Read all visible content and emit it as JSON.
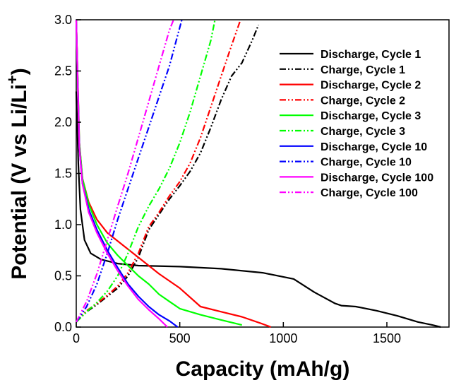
{
  "chart_data": {
    "type": "line",
    "title": "",
    "xlabel": "Capacity (mAh/g)",
    "ylabel_main": "Potential (V vs Li/Li",
    "ylabel_sup": "+",
    "ylabel_close": ")",
    "xlim": [
      0,
      1800
    ],
    "ylim": [
      0,
      3.0
    ],
    "xticks": [
      0,
      500,
      1000,
      1500
    ],
    "yticks": [
      0.0,
      0.5,
      1.0,
      1.5,
      2.0,
      2.5,
      3.0
    ],
    "xtick_labels": [
      "0",
      "500",
      "1000",
      "1500"
    ],
    "ytick_labels": [
      "0.0",
      "0.5",
      "1.0",
      "1.5",
      "2.0",
      "2.5",
      "3.0"
    ],
    "grid": false,
    "legend_position": "top-right",
    "series": [
      {
        "name": "Discharge, Cycle 1",
        "color": "#000000",
        "dash": "solid",
        "x": [
          0,
          10,
          20,
          40,
          70,
          120,
          200,
          300,
          500,
          700,
          900,
          1050,
          1150,
          1250,
          1280,
          1350,
          1450,
          1550,
          1650,
          1720,
          1760
        ],
        "y": [
          2.3,
          1.6,
          1.15,
          0.85,
          0.72,
          0.66,
          0.62,
          0.6,
          0.59,
          0.57,
          0.53,
          0.47,
          0.34,
          0.23,
          0.21,
          0.2,
          0.16,
          0.11,
          0.05,
          0.02,
          0.0
        ]
      },
      {
        "name": "Charge, Cycle 1",
        "color": "#000000",
        "dash": "dashdotdot",
        "x": [
          0,
          50,
          100,
          150,
          200,
          250,
          300,
          350,
          400,
          450,
          500,
          550,
          600,
          650,
          700,
          750,
          800,
          850,
          880
        ],
        "y": [
          0.05,
          0.15,
          0.22,
          0.3,
          0.38,
          0.5,
          0.68,
          0.95,
          1.1,
          1.25,
          1.38,
          1.52,
          1.7,
          1.95,
          2.22,
          2.45,
          2.58,
          2.8,
          2.95
        ]
      },
      {
        "name": "Discharge, Cycle 2",
        "color": "#ff0000",
        "dash": "solid",
        "x": [
          0,
          15,
          30,
          60,
          100,
          150,
          200,
          300,
          400,
          500,
          600,
          700,
          800,
          900,
          940
        ],
        "y": [
          3.0,
          1.8,
          1.45,
          1.22,
          1.05,
          0.92,
          0.84,
          0.68,
          0.52,
          0.38,
          0.2,
          0.15,
          0.1,
          0.03,
          0.0
        ]
      },
      {
        "name": "Charge, Cycle 2",
        "color": "#ff0000",
        "dash": "dashdotdot",
        "x": [
          0,
          50,
          100,
          150,
          200,
          250,
          300,
          350,
          400,
          450,
          500,
          550,
          600,
          650,
          700,
          750,
          790
        ],
        "y": [
          0.05,
          0.16,
          0.23,
          0.31,
          0.4,
          0.53,
          0.72,
          0.98,
          1.12,
          1.28,
          1.42,
          1.6,
          1.85,
          2.15,
          2.45,
          2.75,
          2.98
        ]
      },
      {
        "name": "Discharge, Cycle 3",
        "color": "#00ff00",
        "dash": "solid",
        "x": [
          0,
          15,
          30,
          60,
          100,
          150,
          200,
          250,
          300,
          350,
          400,
          450,
          500,
          600,
          700,
          800
        ],
        "y": [
          3.0,
          1.8,
          1.45,
          1.2,
          1.0,
          0.82,
          0.7,
          0.6,
          0.5,
          0.42,
          0.32,
          0.25,
          0.18,
          0.12,
          0.07,
          0.02
        ]
      },
      {
        "name": "Charge, Cycle 3",
        "color": "#00ff00",
        "dash": "dashdotdot",
        "x": [
          0,
          50,
          100,
          150,
          200,
          250,
          300,
          350,
          400,
          450,
          500,
          550,
          600,
          650,
          670
        ],
        "y": [
          0.05,
          0.15,
          0.24,
          0.35,
          0.5,
          0.72,
          0.98,
          1.18,
          1.35,
          1.55,
          1.8,
          2.1,
          2.45,
          2.8,
          3.0
        ]
      },
      {
        "name": "Discharge, Cycle 10",
        "color": "#0000ff",
        "dash": "solid",
        "x": [
          0,
          15,
          30,
          60,
          100,
          150,
          200,
          250,
          300,
          350,
          400,
          450,
          490
        ],
        "y": [
          3.0,
          1.75,
          1.4,
          1.15,
          0.95,
          0.75,
          0.58,
          0.42,
          0.3,
          0.2,
          0.12,
          0.06,
          0.0
        ]
      },
      {
        "name": "Charge, Cycle 10",
        "color": "#0000ff",
        "dash": "dashdotdot",
        "x": [
          0,
          50,
          100,
          150,
          200,
          250,
          300,
          350,
          400,
          450,
          490,
          510
        ],
        "y": [
          0.05,
          0.2,
          0.42,
          0.72,
          1.05,
          1.35,
          1.65,
          1.95,
          2.25,
          2.55,
          2.85,
          3.0
        ]
      },
      {
        "name": "Discharge, Cycle 100",
        "color": "#ff00ff",
        "dash": "solid",
        "x": [
          0,
          15,
          30,
          60,
          100,
          150,
          200,
          250,
          300,
          350,
          400,
          440
        ],
        "y": [
          3.0,
          1.75,
          1.4,
          1.12,
          0.92,
          0.72,
          0.55,
          0.4,
          0.27,
          0.17,
          0.08,
          0.0
        ]
      },
      {
        "name": "Charge, Cycle 100",
        "color": "#ff00ff",
        "dash": "dashdotdot",
        "x": [
          0,
          50,
          100,
          150,
          200,
          250,
          300,
          350,
          400,
          450,
          470
        ],
        "y": [
          0.05,
          0.25,
          0.52,
          0.85,
          1.18,
          1.5,
          1.85,
          2.2,
          2.55,
          2.9,
          3.0
        ]
      }
    ]
  }
}
